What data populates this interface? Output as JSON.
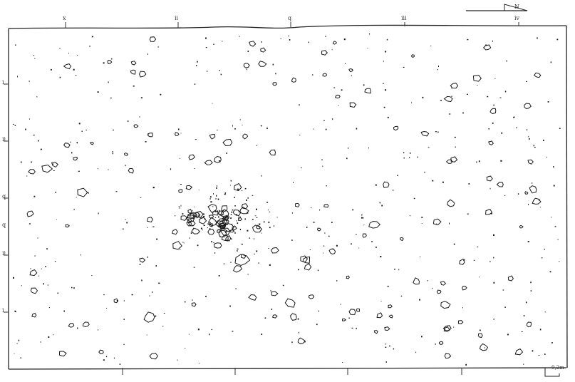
{
  "grid_top_labels": [
    {
      "id": "x",
      "text": "x"
    },
    {
      "id": "ii",
      "text": "ii"
    },
    {
      "id": "q",
      "text": "q"
    },
    {
      "id": "iii",
      "text": "iii"
    },
    {
      "id": "iv",
      "text": "iv"
    }
  ],
  "grid_left_labels": [
    {
      "id": "l1",
      "text": "i"
    },
    {
      "id": "l2",
      "text": "ii"
    },
    {
      "id": "l3",
      "text": "q"
    },
    {
      "id": "l4",
      "text": "q"
    },
    {
      "id": "l5",
      "text": "ii"
    },
    {
      "id": "l6",
      "text": "i"
    }
  ],
  "north_arrow": {
    "label": "N"
  },
  "scale_bar": {
    "label": "0,2m"
  }
}
